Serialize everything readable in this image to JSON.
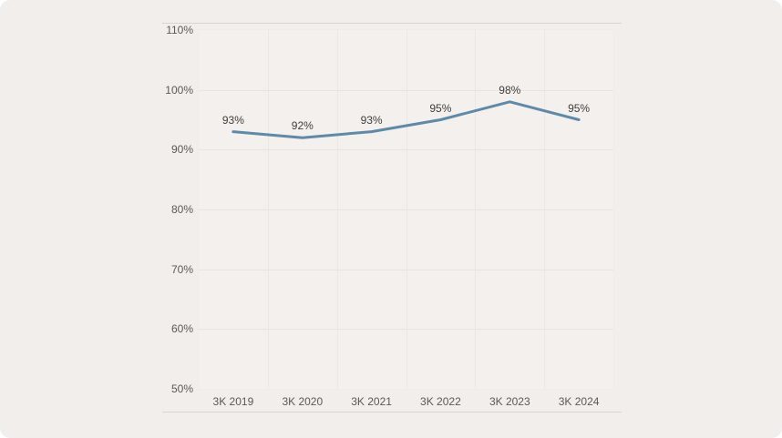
{
  "page": {
    "background": "#ffffff",
    "card_background": "#f2eeeb"
  },
  "chart_data": {
    "type": "line",
    "title": "",
    "xlabel": "",
    "ylabel": "",
    "categories": [
      "3K 2019",
      "3K 2020",
      "3K 2021",
      "3K 2022",
      "3K 2023",
      "3K 2024"
    ],
    "values": [
      93,
      92,
      93,
      95,
      98,
      95
    ],
    "data_labels": [
      "93%",
      "92%",
      "93%",
      "95%",
      "98%",
      "95%"
    ],
    "ylim": [
      50,
      110
    ],
    "ytick_step": 10,
    "ytick_labels": [
      "50%",
      "60%",
      "70%",
      "80%",
      "90%",
      "100%",
      "110%"
    ],
    "grid": true,
    "legend": "none",
    "line_color": "#5f89a6",
    "data_label_color": "#403d3b",
    "axis_label_color": "#5c5855",
    "gridline_color": "#e9e4e1"
  }
}
